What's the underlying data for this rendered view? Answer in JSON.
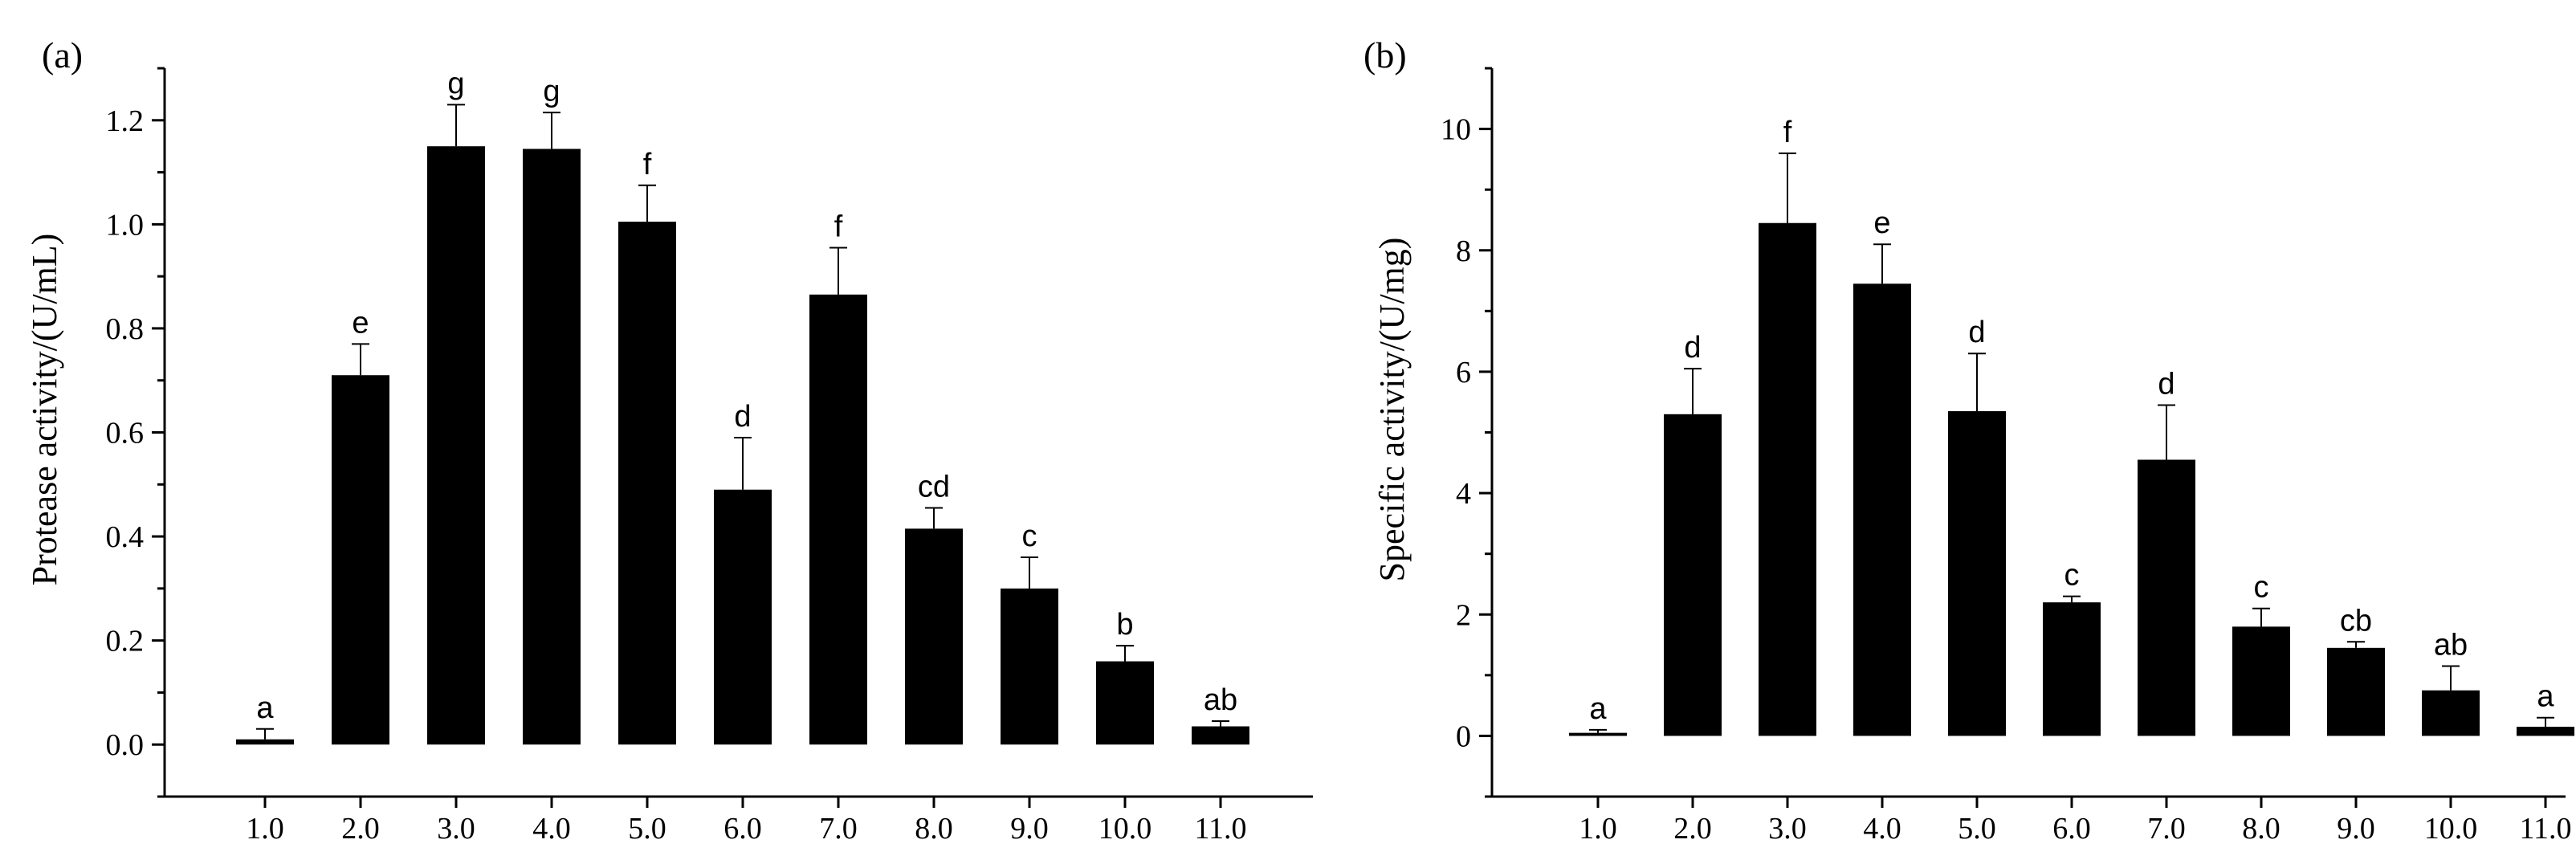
{
  "colors": {
    "bar": "#000000",
    "axis": "#000000",
    "background": "#ffffff"
  },
  "chart_data": [
    {
      "type": "bar",
      "panel_label": "(a)",
      "ylabel": "Protease activity/(U/mL)",
      "xlabel": "",
      "categories": [
        "1.0",
        "2.0",
        "3.0",
        "4.0",
        "5.0",
        "6.0",
        "7.0",
        "8.0",
        "9.0",
        "10.0",
        "11.0"
      ],
      "values": [
        0.01,
        0.71,
        1.15,
        1.145,
        1.005,
        0.49,
        0.865,
        0.415,
        0.3,
        0.16,
        0.035
      ],
      "errors": [
        0.02,
        0.06,
        0.08,
        0.07,
        0.07,
        0.1,
        0.09,
        0.04,
        0.06,
        0.03,
        0.01
      ],
      "significance": [
        "a",
        "e",
        "g",
        "g",
        "f",
        "d",
        "f",
        "cd",
        "c",
        "b",
        "ab"
      ],
      "ylim": [
        -0.1,
        1.3
      ],
      "yticks": [
        "0.0",
        "0.2",
        "0.4",
        "0.6",
        "0.8",
        "1.0",
        "1.2"
      ],
      "grid": false,
      "legend": null
    },
    {
      "type": "bar",
      "panel_label": "(b)",
      "ylabel": "Specific activity/(U/mg)",
      "xlabel": "",
      "categories": [
        "1.0",
        "2.0",
        "3.0",
        "4.0",
        "5.0",
        "6.0",
        "7.0",
        "8.0",
        "9.0",
        "10.0",
        "11.0"
      ],
      "values": [
        0.05,
        5.3,
        8.45,
        7.45,
        5.35,
        2.2,
        4.55,
        1.8,
        1.45,
        0.75,
        0.15
      ],
      "errors": [
        0.05,
        0.75,
        1.15,
        0.65,
        0.95,
        0.1,
        0.9,
        0.3,
        0.1,
        0.4,
        0.15
      ],
      "significance": [
        "a",
        "d",
        "f",
        "e",
        "d",
        "c",
        "d",
        "c",
        "cb",
        "ab",
        "a"
      ],
      "ylim": [
        -1,
        11
      ],
      "yticks": [
        "0",
        "2",
        "4",
        "6",
        "8",
        "10"
      ],
      "grid": false,
      "legend": null
    }
  ]
}
